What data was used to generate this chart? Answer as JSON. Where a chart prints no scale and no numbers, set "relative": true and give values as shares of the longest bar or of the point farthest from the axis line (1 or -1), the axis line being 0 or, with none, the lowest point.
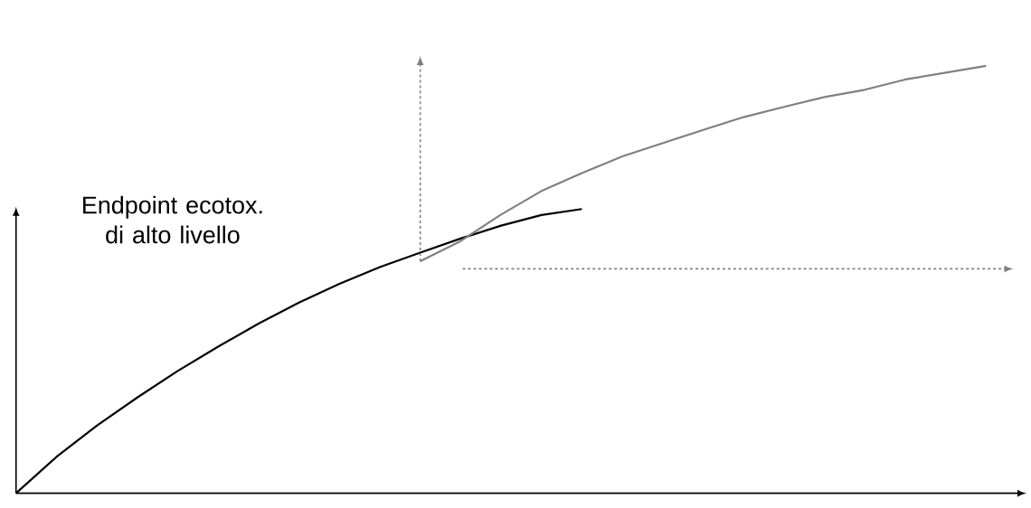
{
  "chart_data": {
    "type": "line",
    "relative": true,
    "annotations": [
      "Endpoint ecotox. di alto livello"
    ],
    "categories": [
      null,
      null,
      null,
      null,
      null,
      null,
      null,
      null,
      null,
      null,
      null,
      null,
      null,
      null,
      null,
      null,
      null,
      null,
      null,
      null,
      null,
      null,
      null,
      null,
      null,
      null
    ],
    "series": [
      {
        "color": "#000000",
        "values": [
          0,
          0.085,
          0.158,
          0.224,
          0.286,
          0.343,
          0.397,
          0.446,
          0.49,
          0.529,
          0.563,
          0.596,
          0.626,
          0.651,
          0.665,
          null,
          null,
          null,
          null,
          null,
          null,
          null,
          null,
          null,
          null,
          null
        ]
      },
      {
        "color": "#808080",
        "values": [
          null,
          null,
          null,
          null,
          null,
          null,
          null,
          null,
          null,
          null,
          0.543,
          0.59,
          0.652,
          0.707,
          0.749,
          0.788,
          0.819,
          0.85,
          0.88,
          0.904,
          0.927,
          0.944,
          0.968,
          0.984,
          1.0,
          null
        ]
      }
    ]
  }
}
